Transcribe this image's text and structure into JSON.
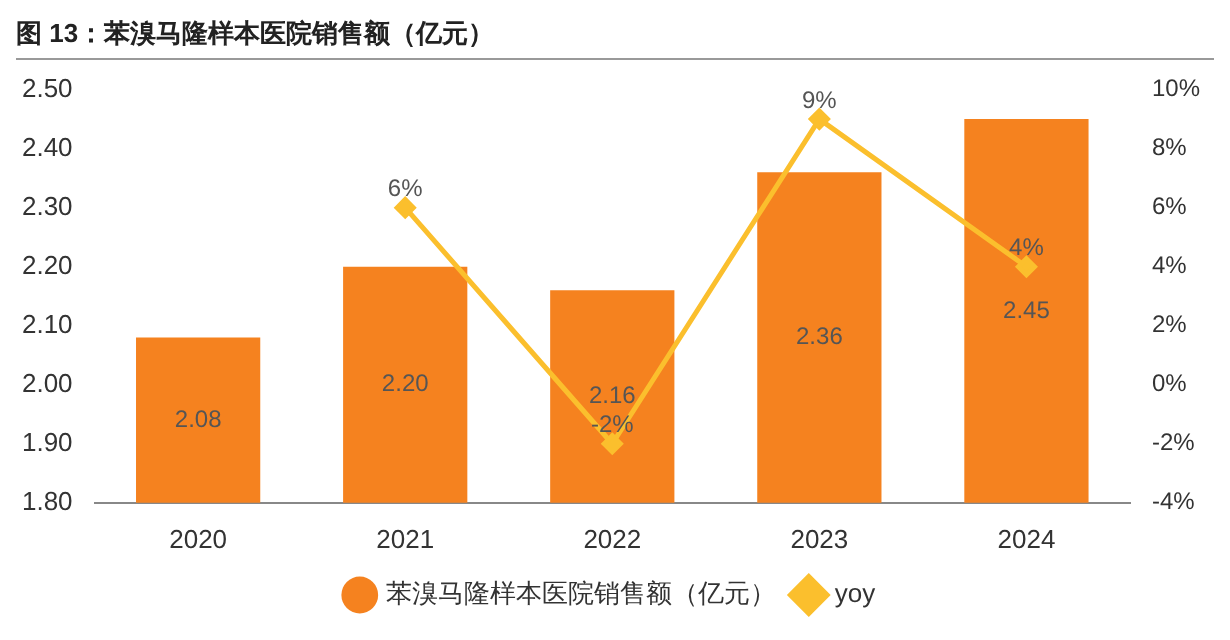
{
  "chart_data": {
    "type": "bar",
    "title": "图 13：苯溴马隆样本医院销售额（亿元）",
    "categories": [
      "2020",
      "2021",
      "2022",
      "2023",
      "2024"
    ],
    "series": [
      {
        "name": "苯溴马隆样本医院销售额（亿元）",
        "color": "#f5821f",
        "values": [
          2.08,
          2.2,
          2.16,
          2.36,
          2.45
        ],
        "value_labels": [
          "2.08",
          "2.20",
          "2.16",
          "2.36",
          "2.45"
        ]
      },
      {
        "name": "yoy",
        "type": "line",
        "axis": "y2",
        "color": "#fbbf2d",
        "marker": "diamond",
        "values": [
          null,
          6,
          -2,
          9,
          4
        ],
        "value_labels": [
          null,
          "6%",
          "-2%",
          "9%",
          "4%"
        ]
      }
    ],
    "ylim": [
      1.8,
      2.5
    ],
    "yticks": [
      {
        "value": 1.8,
        "label": "1.80"
      },
      {
        "value": 1.9,
        "label": "1.90"
      },
      {
        "value": 2.0,
        "label": "2.00"
      },
      {
        "value": 2.1,
        "label": "2.10"
      },
      {
        "value": 2.2,
        "label": "2.20"
      },
      {
        "value": 2.3,
        "label": "2.30"
      },
      {
        "value": 2.4,
        "label": "2.40"
      },
      {
        "value": 2.5,
        "label": "2.50"
      }
    ],
    "y2lim": [
      -4,
      10
    ],
    "y2ticks": [
      {
        "value": -4,
        "label": "-4%"
      },
      {
        "value": -2,
        "label": "-2%"
      },
      {
        "value": 0,
        "label": "0%"
      },
      {
        "value": 2,
        "label": "2%"
      },
      {
        "value": 4,
        "label": "4%"
      },
      {
        "value": 6,
        "label": "6%"
      },
      {
        "value": 8,
        "label": "8%"
      },
      {
        "value": 10,
        "label": "10%"
      }
    ],
    "grid": false,
    "legend": "bottom"
  }
}
